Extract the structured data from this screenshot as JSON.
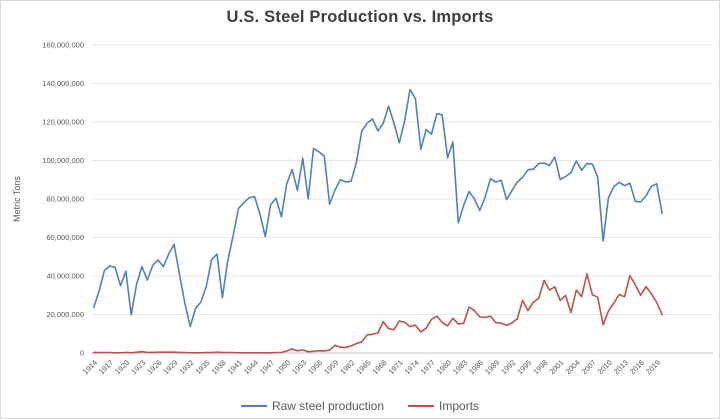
{
  "chart_data": {
    "type": "line",
    "title": "U.S. Steel Production vs. Imports",
    "xlabel": "",
    "ylabel": "Metric Tons",
    "ylim": [
      0,
      160000000
    ],
    "y_tick_step": 20000000,
    "xlim": [
      1914,
      2029
    ],
    "grid": "horizontal",
    "legend_position": "bottom",
    "x_ticks": [
      1914,
      1917,
      1920,
      1923,
      1926,
      1929,
      1932,
      1935,
      1938,
      1941,
      1944,
      1947,
      1950,
      1953,
      1956,
      1959,
      1962,
      1965,
      1968,
      1971,
      1974,
      1977,
      1980,
      1983,
      1986,
      1989,
      1992,
      1995,
      1998,
      2001,
      2004,
      2007,
      2010,
      2013,
      2016,
      2019
    ],
    "x": [
      1914,
      1915,
      1916,
      1917,
      1918,
      1919,
      1920,
      1921,
      1922,
      1923,
      1924,
      1925,
      1926,
      1927,
      1928,
      1929,
      1930,
      1931,
      1932,
      1933,
      1934,
      1935,
      1936,
      1937,
      1938,
      1939,
      1940,
      1941,
      1942,
      1943,
      1944,
      1945,
      1946,
      1947,
      1948,
      1949,
      1950,
      1951,
      1952,
      1953,
      1954,
      1955,
      1956,
      1957,
      1958,
      1959,
      1960,
      1961,
      1962,
      1963,
      1964,
      1965,
      1966,
      1967,
      1968,
      1969,
      1970,
      1971,
      1972,
      1973,
      1974,
      1975,
      1976,
      1977,
      1978,
      1979,
      1980,
      1981,
      1982,
      1983,
      1984,
      1985,
      1986,
      1987,
      1988,
      1989,
      1990,
      1991,
      1992,
      1993,
      1994,
      1995,
      1996,
      1997,
      1998,
      1999,
      2000,
      2001,
      2002,
      2003,
      2004,
      2005,
      2006,
      2007,
      2008,
      2009,
      2010,
      2011,
      2012,
      2013,
      2014,
      2015,
      2016,
      2017,
      2018,
      2019,
      2020
    ],
    "series": [
      {
        "name": "Raw steel production",
        "color": "#4F81BD",
        "values": [
          23700000,
          32000000,
          42800000,
          45200000,
          44500000,
          34900000,
          42500000,
          19800000,
          35800000,
          44900000,
          37900000,
          45500000,
          48300000,
          44900000,
          51500000,
          56400000,
          40700000,
          26000000,
          13700000,
          23200000,
          26500000,
          34600000,
          48500000,
          51400000,
          28800000,
          47900000,
          60800000,
          75100000,
          78000000,
          80600000,
          81300000,
          72300000,
          60400000,
          77000000,
          80400000,
          70700000,
          87800000,
          95400000,
          84500000,
          101200000,
          80100000,
          106200000,
          104500000,
          102300000,
          77300000,
          84700000,
          90100000,
          88900000,
          89200000,
          99100000,
          115300000,
          119300000,
          121600000,
          115400000,
          119300000,
          128200000,
          119300000,
          109200000,
          120800000,
          136800000,
          132200000,
          105800000,
          116100000,
          113700000,
          124300000,
          123700000,
          101400000,
          109600000,
          67700000,
          76800000,
          83900000,
          80100000,
          74000000,
          80900000,
          90600000,
          88800000,
          89700000,
          79700000,
          84300000,
          88800000,
          91200000,
          95200000,
          95500000,
          98500000,
          98700000,
          97400000,
          101800000,
          90100000,
          91600000,
          93700000,
          99700000,
          94900000,
          98500000,
          98100000,
          91400000,
          58200000,
          80500000,
          86400000,
          88700000,
          86900000,
          88200000,
          78800000,
          78500000,
          81600000,
          86600000,
          87900000,
          72700000
        ]
      },
      {
        "name": "Imports",
        "color": "#C0504D",
        "values": [
          300000,
          200000,
          200000,
          200000,
          100000,
          100000,
          300000,
          100000,
          400000,
          700000,
          300000,
          300000,
          400000,
          400000,
          400000,
          400000,
          300000,
          200000,
          100000,
          100000,
          100000,
          200000,
          200000,
          400000,
          200000,
          200000,
          200000,
          100000,
          100000,
          100000,
          100000,
          100000,
          100000,
          100000,
          200000,
          300000,
          1000000,
          2200000,
          1100000,
          1600000,
          700000,
          900000,
          1200000,
          1100000,
          1500000,
          4000000,
          3000000,
          2900000,
          3700000,
          4900000,
          5800000,
          9400000,
          9700000,
          10400000,
          16300000,
          12700000,
          12100000,
          16600000,
          16000000,
          13700000,
          14500000,
          10900000,
          12900000,
          17500000,
          19100000,
          15900000,
          14100000,
          18100000,
          15100000,
          15500000,
          23900000,
          22000000,
          18700000,
          18500000,
          19100000,
          15800000,
          15500000,
          14400000,
          15600000,
          17800000,
          27300000,
          22000000,
          26400000,
          28400000,
          37700000,
          32700000,
          34400000,
          27300000,
          29900000,
          21000000,
          32700000,
          29300000,
          41100000,
          30200000,
          29000000,
          14700000,
          21700000,
          25900000,
          30400000,
          29200000,
          40200000,
          35400000,
          30000000,
          34500000,
          30800000,
          26300000,
          19900000
        ]
      }
    ]
  }
}
